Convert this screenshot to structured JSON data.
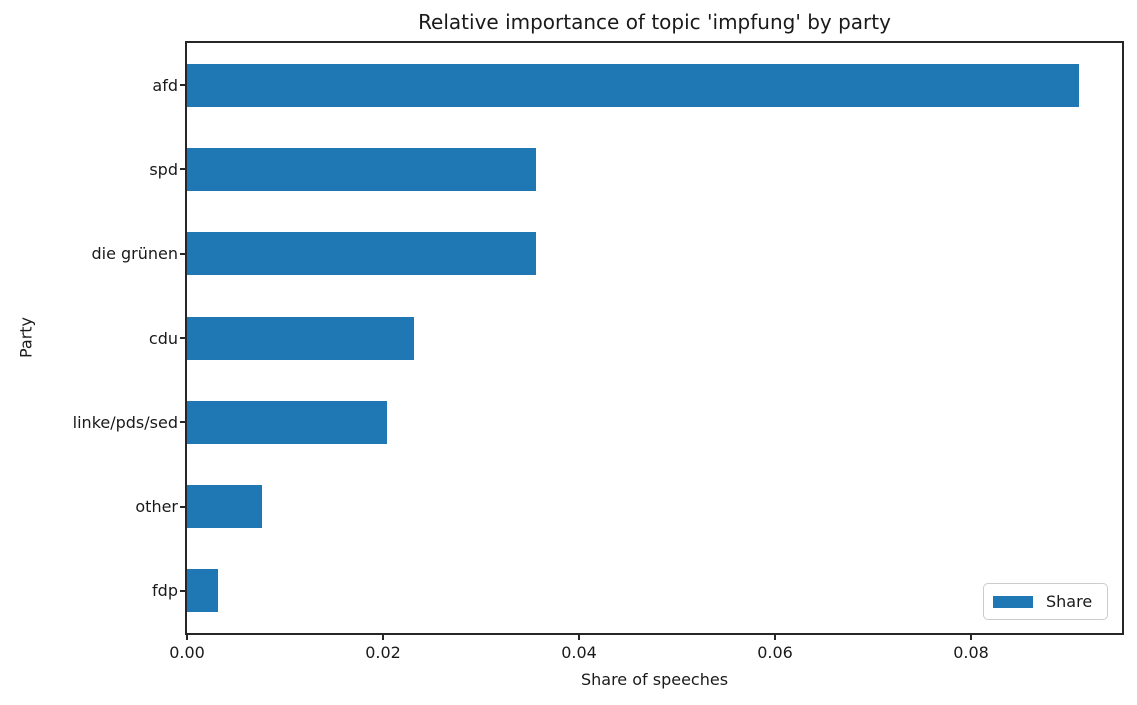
{
  "chart_data": {
    "type": "bar",
    "orientation": "horizontal",
    "title": "Relative importance of topic 'impfung' by party",
    "xlabel": "Share of speeches",
    "ylabel": "Party",
    "categories": [
      "afd",
      "spd",
      "die grünen",
      "cdu",
      "linke/pds/sed",
      "other",
      "fdp"
    ],
    "series": [
      {
        "name": "Share",
        "values": [
          0.091,
          0.0356,
          0.0356,
          0.0232,
          0.0204,
          0.0077,
          0.0032
        ]
      }
    ],
    "xlim": [
      0,
      0.0954
    ],
    "xticks": [
      0,
      0.02,
      0.04,
      0.06,
      0.08
    ],
    "xtick_labels": [
      "0.00",
      "0.02",
      "0.04",
      "0.06",
      "0.08"
    ],
    "legend": {
      "label": "Share",
      "position": "lower right"
    },
    "bar_color": "#1f77b4",
    "grid": false
  }
}
